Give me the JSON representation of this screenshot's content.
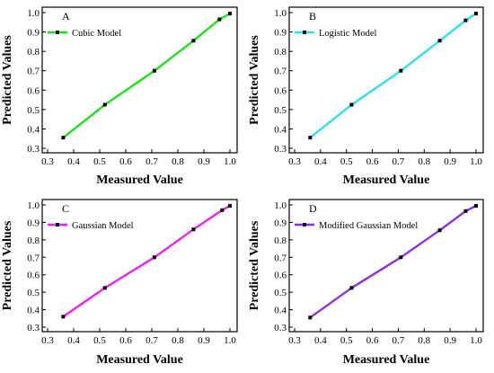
{
  "chart_data": [
    {
      "type": "line",
      "panel_label": "A",
      "xlabel": "Measured Value",
      "ylabel": "Predicted Values",
      "xlim": [
        0.3,
        1.0
      ],
      "ylim": [
        0.3,
        1.0
      ],
      "xticks": [
        "0.3",
        "0.4",
        "0.5",
        "0.6",
        "0.7",
        "0.8",
        "0.9",
        "1.0"
      ],
      "yticks": [
        "0.3",
        "0.4",
        "0.5",
        "0.6",
        "0.7",
        "0.8",
        "0.9",
        "1.0"
      ],
      "legend_position": "top-left",
      "series": [
        {
          "name": "Cubic Model",
          "color": "#22dd22",
          "x": [
            0.36,
            0.52,
            0.71,
            0.86,
            0.96,
            1.0
          ],
          "y": [
            0.355,
            0.525,
            0.7,
            0.855,
            0.965,
            0.995
          ]
        }
      ]
    },
    {
      "type": "line",
      "panel_label": "B",
      "xlabel": "Measured Value",
      "ylabel": "Predicted Values",
      "xlim": [
        0.3,
        1.0
      ],
      "ylim": [
        0.3,
        1.0
      ],
      "xticks": [
        "0.3",
        "0.4",
        "0.5",
        "0.6",
        "0.7",
        "0.8",
        "0.9",
        "1.0"
      ],
      "yticks": [
        "0.3",
        "0.4",
        "0.5",
        "0.6",
        "0.7",
        "0.8",
        "0.9",
        "1.0"
      ],
      "legend_position": "top-left",
      "series": [
        {
          "name": "Logistic Model",
          "color": "#33ddee",
          "x": [
            0.36,
            0.52,
            0.71,
            0.86,
            0.96,
            1.0
          ],
          "y": [
            0.355,
            0.525,
            0.7,
            0.855,
            0.96,
            0.995
          ]
        }
      ]
    },
    {
      "type": "line",
      "panel_label": "C",
      "xlabel": "Measured Value",
      "ylabel": "Predicted Values",
      "xlim": [
        0.3,
        1.0
      ],
      "ylim": [
        0.3,
        1.0
      ],
      "xticks": [
        "0.3",
        "0.4",
        "0.5",
        "0.6",
        "0.7",
        "0.8",
        "0.9",
        "1.0"
      ],
      "yticks": [
        "0.3",
        "0.4",
        "0.5",
        "0.6",
        "0.7",
        "0.8",
        "0.9",
        "1.0"
      ],
      "legend_position": "top-left",
      "series": [
        {
          "name": "Gaussian Model",
          "color": "#ee22ee",
          "x": [
            0.36,
            0.52,
            0.71,
            0.86,
            0.97,
            1.0
          ],
          "y": [
            0.36,
            0.525,
            0.7,
            0.86,
            0.97,
            0.995
          ]
        }
      ]
    },
    {
      "type": "line",
      "panel_label": "D",
      "xlabel": "Measured Value",
      "ylabel": "Predicted Values",
      "xlim": [
        0.3,
        1.0
      ],
      "ylim": [
        0.3,
        1.0
      ],
      "xticks": [
        "0.3",
        "0.4",
        "0.5",
        "0.6",
        "0.7",
        "0.8",
        "0.9",
        "1.0"
      ],
      "yticks": [
        "0.3",
        "0.4",
        "0.5",
        "0.6",
        "0.7",
        "0.8",
        "0.9",
        "1.0"
      ],
      "legend_position": "top-left",
      "series": [
        {
          "name": "Modified Gaussian Model",
          "color": "#8833dd",
          "x": [
            0.36,
            0.52,
            0.71,
            0.86,
            0.96,
            1.0
          ],
          "y": [
            0.355,
            0.525,
            0.7,
            0.855,
            0.965,
            0.995
          ]
        }
      ]
    }
  ]
}
